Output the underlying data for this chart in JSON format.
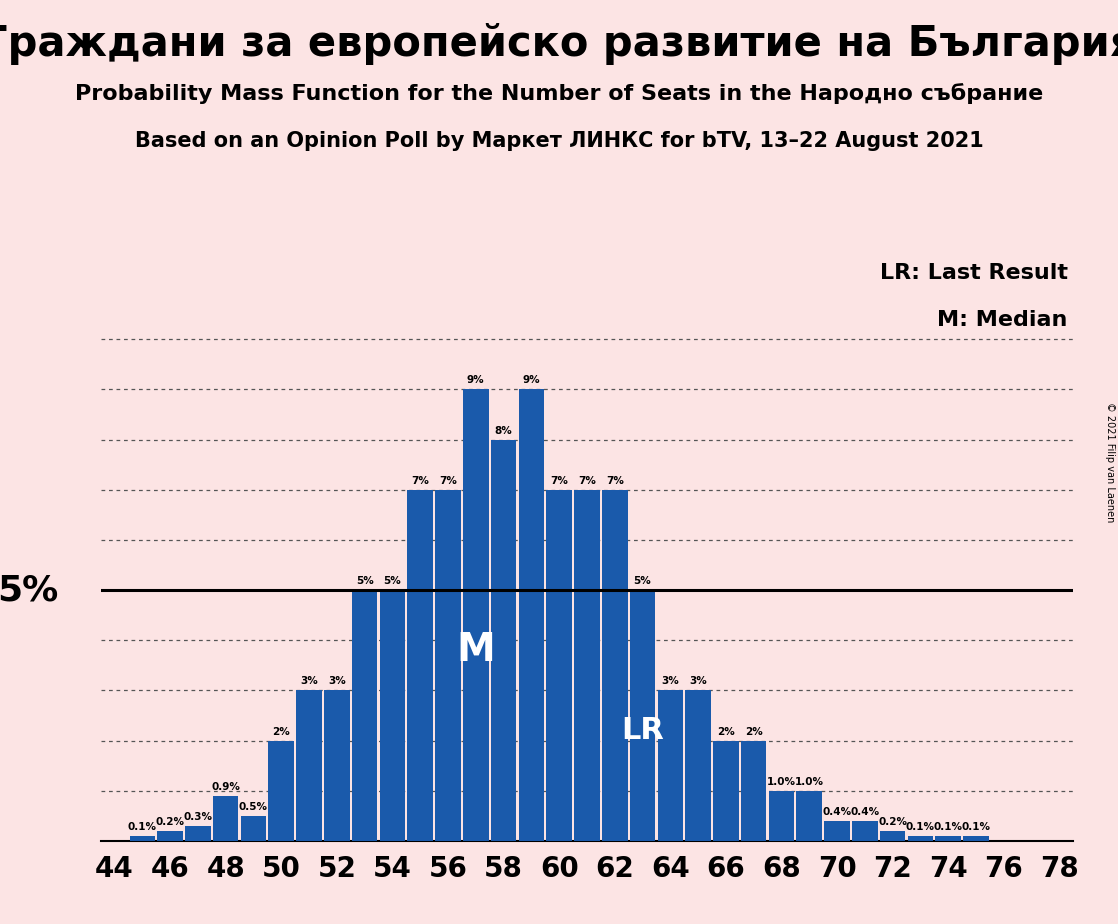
{
  "title": "Граждани за европейско развитие на България",
  "subtitle1": "Probability Mass Function for the Number of Seats in the Народно събрание",
  "subtitle2": "Based on an Opinion Poll by Маркет ЛИНКС for bTV, 13–22 August 2021",
  "copyright": "© 2021 Filip van Laenen",
  "legend_lr": "LR: Last Result",
  "legend_m": "M: Median",
  "label_5pct": "5%",
  "label_m": "M",
  "label_lr": "LR",
  "background_color": "#fce4e4",
  "bar_color": "#1a5aab",
  "line_5pct_color": "#000000",
  "gridline_color": "#555555",
  "median": 57,
  "last_result": 63,
  "seats": [
    44,
    45,
    46,
    47,
    48,
    49,
    50,
    51,
    52,
    53,
    54,
    55,
    56,
    57,
    58,
    59,
    60,
    61,
    62,
    63,
    64,
    65,
    66,
    67,
    68,
    69,
    70,
    71,
    72,
    73,
    74,
    75,
    76,
    77,
    78
  ],
  "probabilities": [
    0.0,
    0.1,
    0.2,
    0.3,
    0.9,
    0.5,
    2.0,
    3.0,
    3.0,
    5.0,
    5.0,
    7.0,
    7.0,
    9.0,
    8.0,
    9.0,
    7.0,
    7.0,
    7.0,
    5.0,
    3.0,
    3.0,
    2.0,
    2.0,
    1.0,
    1.0,
    0.4,
    0.4,
    0.2,
    0.1,
    0.1,
    0.1,
    0.0,
    0.0,
    0.0
  ],
  "bar_labels": [
    "0%",
    "0.1%",
    "0.2%",
    "0.3%",
    "0.9%",
    "0.5%",
    "2%",
    "3%",
    "3%",
    "5%",
    "5%",
    "7%",
    "7%",
    "9%",
    "8%",
    "9%",
    "7%",
    "7%",
    "7%",
    "5%",
    "3%",
    "3%",
    "2%",
    "2%",
    "1.0%",
    "1.0%",
    "0.4%",
    "0.4%",
    "0.2%",
    "0.1%",
    "0.1%",
    "0.1%",
    "0%",
    "0%",
    "0%"
  ],
  "ylim": [
    0,
    10.5
  ],
  "figsize": [
    11.18,
    9.24
  ],
  "dpi": 100
}
